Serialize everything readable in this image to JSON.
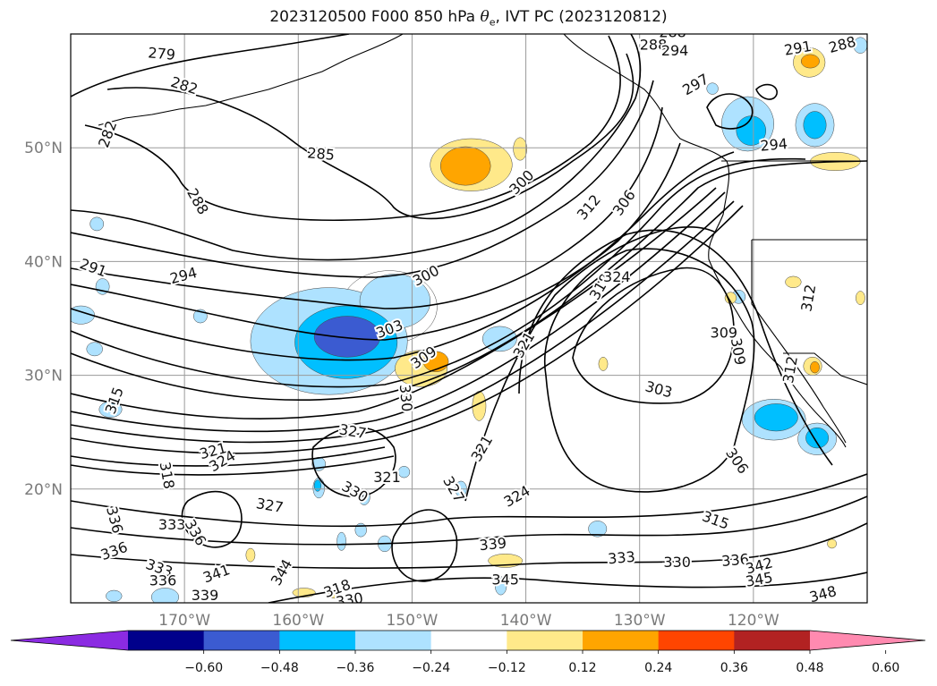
{
  "title": {
    "prefix": "2023120500 F000 850 hPa ",
    "theta": "θ",
    "theta_sub": "e",
    "suffix": ", IVT PC (2023120812)"
  },
  "map": {
    "projection": "plate-carree",
    "lon_range": [
      -180,
      -110
    ],
    "lat_range": [
      10,
      60
    ],
    "grid": true,
    "lon_ticks": [
      {
        "lon": -170,
        "label": "170°W"
      },
      {
        "lon": -160,
        "label": "160°W"
      },
      {
        "lon": -150,
        "label": "150°W"
      },
      {
        "lon": -140,
        "label": "140°W"
      },
      {
        "lon": -130,
        "label": "130°W"
      },
      {
        "lon": -120,
        "label": "120°W"
      }
    ],
    "lat_ticks": [
      {
        "lat": 20,
        "label": "20°N"
      },
      {
        "lat": 30,
        "label": "30°N"
      },
      {
        "lat": 40,
        "label": "40°N"
      },
      {
        "lat": 50,
        "label": "50°N"
      }
    ]
  },
  "theta_e_contours": {
    "units": "K",
    "labels": [
      {
        "lon": -172,
        "lat": 58.3,
        "text": "279",
        "rot": 5
      },
      {
        "lon": -170,
        "lat": 55.5,
        "text": "282",
        "rot": 18
      },
      {
        "lon": -176.8,
        "lat": 51.2,
        "text": "282",
        "rot": -70
      },
      {
        "lon": -158,
        "lat": 49.5,
        "text": "285",
        "rot": 5
      },
      {
        "lon": -168.8,
        "lat": 45.3,
        "text": "288",
        "rot": 60
      },
      {
        "lon": -178,
        "lat": 39.5,
        "text": "291",
        "rot": 20
      },
      {
        "lon": -170.1,
        "lat": 38.8,
        "text": "294",
        "rot": -15
      },
      {
        "lon": -148.8,
        "lat": 38.8,
        "text": "300",
        "rot": -28
      },
      {
        "lon": -140.4,
        "lat": 47,
        "text": "300",
        "rot": -45
      },
      {
        "lon": -152,
        "lat": 34.1,
        "text": "303",
        "rot": -20
      },
      {
        "lon": -149,
        "lat": 31.6,
        "text": "309",
        "rot": -35
      },
      {
        "lon": -150.5,
        "lat": 28,
        "text": "330",
        "rot": 85
      },
      {
        "lon": -131.4,
        "lat": 45.2,
        "text": "306",
        "rot": -55
      },
      {
        "lon": -134.5,
        "lat": 44.8,
        "text": "312",
        "rot": -50
      },
      {
        "lon": -133.5,
        "lat": 37.8,
        "text": "318",
        "rot": -60
      },
      {
        "lon": -132,
        "lat": 38.7,
        "text": "324",
        "rot": 0
      },
      {
        "lon": -140.2,
        "lat": 32.7,
        "text": "321",
        "rot": -60
      },
      {
        "lon": -122.6,
        "lat": 33.8,
        "text": "309",
        "rot": 0
      },
      {
        "lon": -121.3,
        "lat": 32.1,
        "text": "309",
        "rot": 80
      },
      {
        "lon": -116.8,
        "lat": 30.5,
        "text": "312",
        "rot": -80
      },
      {
        "lon": -115.2,
        "lat": 36.8,
        "text": "312",
        "rot": -80
      },
      {
        "lon": -128.3,
        "lat": 28.8,
        "text": "303",
        "rot": 15
      },
      {
        "lon": -121.4,
        "lat": 22.5,
        "text": "306",
        "rot": 55
      },
      {
        "lon": -123.3,
        "lat": 17.3,
        "text": "315",
        "rot": 20
      },
      {
        "lon": -176.2,
        "lat": 27.8,
        "text": "315",
        "rot": -70
      },
      {
        "lon": -167.5,
        "lat": 23.4,
        "text": "321",
        "rot": -15
      },
      {
        "lon": -166.7,
        "lat": 22.5,
        "text": "324",
        "rot": -30
      },
      {
        "lon": -171.5,
        "lat": 21.2,
        "text": "318",
        "rot": 80
      },
      {
        "lon": -155.2,
        "lat": 25.1,
        "text": "327",
        "rot": 10
      },
      {
        "lon": -152.2,
        "lat": 21.1,
        "text": "321",
        "rot": 0
      },
      {
        "lon": -155,
        "lat": 19.8,
        "text": "330",
        "rot": 30
      },
      {
        "lon": -143.9,
        "lat": 23.6,
        "text": "321",
        "rot": -60
      },
      {
        "lon": -146.3,
        "lat": 20,
        "text": "327",
        "rot": 60
      },
      {
        "lon": -140.8,
        "lat": 19.4,
        "text": "324",
        "rot": -30
      },
      {
        "lon": -162.5,
        "lat": 18.6,
        "text": "327",
        "rot": 10
      },
      {
        "lon": -171.1,
        "lat": 16.9,
        "text": "333",
        "rot": 0
      },
      {
        "lon": -169,
        "lat": 16.2,
        "text": "336",
        "rot": 60
      },
      {
        "lon": -176.1,
        "lat": 17.3,
        "text": "336",
        "rot": 75
      },
      {
        "lon": -176.2,
        "lat": 14.6,
        "text": "336",
        "rot": -20
      },
      {
        "lon": -172.2,
        "lat": 13.1,
        "text": "333",
        "rot": 20
      },
      {
        "lon": -171.9,
        "lat": 12,
        "text": "336",
        "rot": 0
      },
      {
        "lon": -167.2,
        "lat": 12.6,
        "text": "341",
        "rot": -20
      },
      {
        "lon": -161.5,
        "lat": 12.7,
        "text": "344",
        "rot": -60
      },
      {
        "lon": -168.2,
        "lat": 10.7,
        "text": "339",
        "rot": 0
      },
      {
        "lon": -156.6,
        "lat": 11.3,
        "text": "318",
        "rot": -20
      },
      {
        "lon": -155.5,
        "lat": 10.3,
        "text": "330",
        "rot": -10
      },
      {
        "lon": -142.9,
        "lat": 15.2,
        "text": "339",
        "rot": -5
      },
      {
        "lon": -141.8,
        "lat": 12.1,
        "text": "345",
        "rot": 0
      },
      {
        "lon": -131.6,
        "lat": 14,
        "text": "333",
        "rot": -5
      },
      {
        "lon": -126.7,
        "lat": 13.6,
        "text": "330",
        "rot": 0
      },
      {
        "lon": -121.6,
        "lat": 13.8,
        "text": "336",
        "rot": -5
      },
      {
        "lon": -119.5,
        "lat": 13.3,
        "text": "342",
        "rot": -15
      },
      {
        "lon": -119.5,
        "lat": 12.1,
        "text": "345",
        "rot": -10
      },
      {
        "lon": -113.9,
        "lat": 10.8,
        "text": "348",
        "rot": -15
      },
      {
        "lon": -128.8,
        "lat": 59.1,
        "text": "288",
        "rot": 0
      },
      {
        "lon": -127.1,
        "lat": 60.2,
        "text": "288",
        "rot": 0
      },
      {
        "lon": -126.9,
        "lat": 58.6,
        "text": "294",
        "rot": 0
      },
      {
        "lon": -116.1,
        "lat": 58.8,
        "text": "291",
        "rot": -10
      },
      {
        "lon": -112.2,
        "lat": 59.1,
        "text": "288",
        "rot": -15
      },
      {
        "lon": -125.1,
        "lat": 55.6,
        "text": "297",
        "rot": -30
      },
      {
        "lon": -118.2,
        "lat": 50.3,
        "text": "294",
        "rot": -5
      }
    ]
  },
  "ivt_pc_shading": {
    "negative": [
      {
        "lon": -157.3,
        "lat": 33,
        "rx": 6.9,
        "ry": 4.7,
        "level": -0.24
      },
      {
        "lon": -155.8,
        "lat": 32.9,
        "rx": 4.5,
        "ry": 3.2,
        "level": -0.36
      },
      {
        "lon": -155.7,
        "lat": 33.4,
        "rx": 2.9,
        "ry": 1.8,
        "level": -0.48
      },
      {
        "lon": -152,
        "lat": 36,
        "rx": 4.2,
        "ry": 3.2,
        "level": -0.12
      },
      {
        "lon": -151.5,
        "lat": 36.5,
        "rx": 3.1,
        "ry": 2.4,
        "level": -0.24
      },
      {
        "lon": -118.2,
        "lat": 26.1,
        "rx": 2.8,
        "ry": 1.8,
        "level": -0.24
      },
      {
        "lon": -118,
        "lat": 26.3,
        "rx": 1.9,
        "ry": 1.2,
        "level": -0.36
      },
      {
        "lon": -114.4,
        "lat": 24.4,
        "rx": 1.7,
        "ry": 1.4,
        "level": -0.24
      },
      {
        "lon": -114.4,
        "lat": 24.5,
        "rx": 1,
        "ry": 0.9,
        "level": -0.36
      },
      {
        "lon": -120.5,
        "lat": 52.1,
        "rx": 2.3,
        "ry": 2.4,
        "level": -0.24
      },
      {
        "lon": -120.2,
        "lat": 51.5,
        "rx": 1.3,
        "ry": 1.3,
        "level": -0.36
      },
      {
        "lon": -114.6,
        "lat": 52,
        "rx": 1.7,
        "ry": 1.9,
        "level": -0.24
      },
      {
        "lon": -114.6,
        "lat": 52,
        "rx": 1,
        "ry": 1.2,
        "level": -0.36
      },
      {
        "lon": -179.1,
        "lat": 35.3,
        "rx": 1.2,
        "ry": 0.8,
        "level": -0.24
      },
      {
        "lon": -177.9,
        "lat": 32.3,
        "rx": 0.7,
        "ry": 0.6,
        "level": -0.24
      },
      {
        "lon": -142.3,
        "lat": 33.2,
        "rx": 1.5,
        "ry": 1.1,
        "level": -0.24
      },
      {
        "lon": -176.5,
        "lat": 27,
        "rx": 1,
        "ry": 0.7,
        "level": -0.24
      },
      {
        "lon": -177.7,
        "lat": 43.3,
        "rx": 0.6,
        "ry": 0.6,
        "level": -0.24
      },
      {
        "lon": -177.2,
        "lat": 37.8,
        "rx": 0.6,
        "ry": 0.7,
        "level": -0.24
      },
      {
        "lon": -168.6,
        "lat": 35.2,
        "rx": 0.6,
        "ry": 0.6,
        "level": -0.24
      },
      {
        "lon": -158.2,
        "lat": 22.2,
        "rx": 0.6,
        "ry": 0.6,
        "level": -0.24
      },
      {
        "lon": -158.2,
        "lat": 20.1,
        "rx": 0.5,
        "ry": 0.9,
        "level": -0.24
      },
      {
        "lon": -158.3,
        "lat": 20.3,
        "rx": 0.3,
        "ry": 0.5,
        "level": -0.36
      },
      {
        "lon": -154.2,
        "lat": 19.3,
        "rx": 0.5,
        "ry": 0.7,
        "level": -0.24
      },
      {
        "lon": -150.7,
        "lat": 21.5,
        "rx": 0.5,
        "ry": 0.5,
        "level": -0.24
      },
      {
        "lon": -154.5,
        "lat": 16.4,
        "rx": 0.5,
        "ry": 0.6,
        "level": -0.24
      },
      {
        "lon": -152.4,
        "lat": 15.2,
        "rx": 0.6,
        "ry": 0.7,
        "level": -0.24
      },
      {
        "lon": -156.2,
        "lat": 15.4,
        "rx": 0.4,
        "ry": 0.8,
        "level": -0.24
      },
      {
        "lon": -145.7,
        "lat": 20,
        "rx": 0.5,
        "ry": 0.7,
        "level": -0.24
      },
      {
        "lon": -133.7,
        "lat": 16.5,
        "rx": 0.8,
        "ry": 0.7,
        "level": -0.24
      },
      {
        "lon": -142.2,
        "lat": 11.5,
        "rx": 0.5,
        "ry": 0.8,
        "level": -0.24
      },
      {
        "lon": -171.7,
        "lat": 10.5,
        "rx": 1.2,
        "ry": 0.8,
        "level": -0.24
      },
      {
        "lon": -176.2,
        "lat": 10.6,
        "rx": 0.7,
        "ry": 0.5,
        "level": -0.24
      },
      {
        "lon": -110.6,
        "lat": 59,
        "rx": 0.6,
        "ry": 0.7,
        "level": -0.24
      },
      {
        "lon": -121.3,
        "lat": 36.9,
        "rx": 0.6,
        "ry": 0.6,
        "level": -0.24
      },
      {
        "lon": -123.6,
        "lat": 55.2,
        "rx": 0.5,
        "ry": 0.5,
        "level": -0.24
      }
    ],
    "positive": [
      {
        "lon": -144.8,
        "lat": 48.5,
        "rx": 3.6,
        "ry": 2.3,
        "level": 0.24
      },
      {
        "lon": -145.3,
        "lat": 48.4,
        "rx": 2.2,
        "ry": 1.7,
        "level": 0.36
      },
      {
        "lon": -149.2,
        "lat": 30.6,
        "rx": 2.3,
        "ry": 1.6,
        "level": 0.24
      },
      {
        "lon": -147.9,
        "lat": 31.2,
        "rx": 1.1,
        "ry": 0.9,
        "level": 0.36
      },
      {
        "lon": -140.5,
        "lat": 49.9,
        "rx": 0.6,
        "ry": 1,
        "level": 0.24
      },
      {
        "lon": -115.1,
        "lat": 57.5,
        "rx": 1.4,
        "ry": 1.3,
        "level": 0.24
      },
      {
        "lon": -115,
        "lat": 57.6,
        "rx": 0.8,
        "ry": 0.6,
        "level": 0.36
      },
      {
        "lon": -112.8,
        "lat": 48.8,
        "rx": 2.2,
        "ry": 0.8,
        "level": 0.24
      },
      {
        "lon": -114.8,
        "lat": 30.8,
        "rx": 0.8,
        "ry": 0.8,
        "level": 0.24
      },
      {
        "lon": -114.6,
        "lat": 30.7,
        "rx": 0.4,
        "ry": 0.5,
        "level": 0.36
      },
      {
        "lon": -144.1,
        "lat": 27.3,
        "rx": 0.6,
        "ry": 1.3,
        "level": 0.24
      },
      {
        "lon": -141.8,
        "lat": 13.7,
        "rx": 1.5,
        "ry": 0.6,
        "level": 0.24
      },
      {
        "lon": -116.5,
        "lat": 38.2,
        "rx": 0.7,
        "ry": 0.5,
        "level": 0.24
      },
      {
        "lon": -110.6,
        "lat": 36.8,
        "rx": 0.4,
        "ry": 0.6,
        "level": 0.24
      },
      {
        "lon": -133.2,
        "lat": 31,
        "rx": 0.4,
        "ry": 0.6,
        "level": 0.24
      },
      {
        "lon": -122,
        "lat": 36.8,
        "rx": 0.5,
        "ry": 0.5,
        "level": 0.24
      },
      {
        "lon": -159.5,
        "lat": 10.9,
        "rx": 1,
        "ry": 0.4,
        "level": 0.24
      },
      {
        "lon": -156.8,
        "lat": 10.7,
        "rx": 0.6,
        "ry": 0.3,
        "level": 0.24
      },
      {
        "lon": -164.2,
        "lat": 14.2,
        "rx": 0.4,
        "ry": 0.6,
        "level": 0.24
      },
      {
        "lon": -113.1,
        "lat": 15.2,
        "rx": 0.4,
        "ry": 0.4,
        "level": 0.24
      }
    ]
  },
  "colorbar": {
    "variable": "IVT PC",
    "bounds": [
      -0.72,
      -0.6,
      -0.48,
      -0.36,
      -0.24,
      -0.12,
      0.12,
      0.24,
      0.36,
      0.48,
      0.6,
      0.72
    ],
    "colors": [
      "#8b2be2",
      "#00008b",
      "#3b5bd1",
      "#00bfff",
      "#aee2ff",
      "#ffffff",
      "#ffe98a",
      "#ffa500",
      "#ff4500",
      "#b22222",
      "#ff8ab0"
    ],
    "tick_labels": [
      "−0.60",
      "−0.48",
      "−0.36",
      "−0.24",
      "−0.12",
      "0.12",
      "0.24",
      "0.36",
      "0.48",
      "0.60"
    ],
    "extend": "both"
  },
  "colors": {
    "grid": "#9a9a9a",
    "contour": "#000000",
    "frame": "#000000",
    "axis_text": "#7a7a7a"
  }
}
